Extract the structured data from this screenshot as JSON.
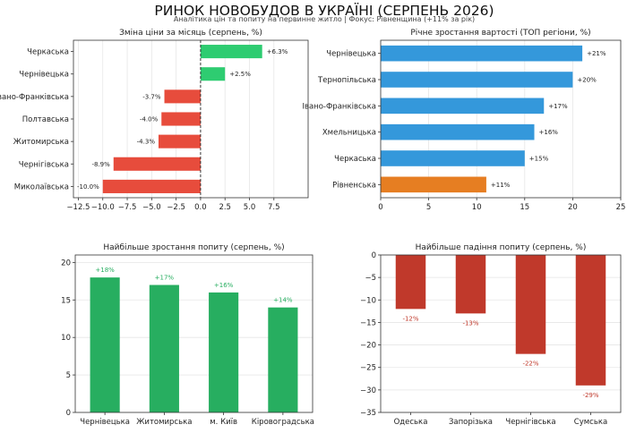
{
  "page": {
    "title": "РИНОК НОВОБУДОВ В УКРАЇНІ (СЕРПЕНЬ 2026)",
    "subtitle": "Аналітика цін та попиту на первинне житло | Фокус: Рівненщина (+11% за рік)"
  },
  "colors": {
    "positive": "#2ecc71",
    "negative": "#e74c3c",
    "blue": "#3498db",
    "highlight": "#e67e22",
    "demand_up": "#27ae60",
    "demand_down": "#c0392b"
  },
  "chart_data": [
    {
      "id": "price_change",
      "type": "bar",
      "orientation": "horizontal",
      "title": "Зміна ціни за місяць (серпень, %)",
      "categories": [
        "Черкаська",
        "Чернівецька",
        "Івано-Франківська",
        "Полтавська",
        "Житомирська",
        "Чернігівська",
        "Миколаївська"
      ],
      "values": [
        6.3,
        2.5,
        -3.7,
        -4.0,
        -4.3,
        -8.9,
        -10.0
      ],
      "labels": [
        "+6.3%",
        "+2.5%",
        "-3.7%",
        "-4.0%",
        "-4.3%",
        "-8.9%",
        "-10.0%"
      ],
      "xlim": [
        -13,
        11
      ],
      "xticks": [
        -12.5,
        -10.0,
        -7.5,
        -5.0,
        -2.5,
        0.0,
        2.5,
        5.0,
        7.5
      ],
      "xtick_labels": [
        "−12.5",
        "−10.0",
        "−7.5",
        "−5.0",
        "−2.5",
        "0.0",
        "2.5",
        "5.0",
        "7.5"
      ],
      "zero_line": "dashed",
      "grid": "x"
    },
    {
      "id": "annual_growth",
      "type": "bar",
      "orientation": "horizontal",
      "title": "Річне зростання вартості (ТОП регіони, %)",
      "categories": [
        "Чернівецька",
        "Тернопільська",
        "Івано-Франківська",
        "Хмельницька",
        "Черкаська",
        "Рівненська"
      ],
      "values": [
        21,
        20,
        17,
        16,
        15,
        11
      ],
      "labels": [
        "+21%",
        "+20%",
        "+17%",
        "+16%",
        "+15%",
        "+11%"
      ],
      "highlight_index": 5,
      "xlim": [
        0,
        25
      ],
      "xticks": [
        0,
        5,
        10,
        15,
        20,
        25
      ],
      "xtick_labels": [
        "0",
        "5",
        "10",
        "15",
        "20",
        "25"
      ],
      "grid": "x"
    },
    {
      "id": "demand_growth",
      "type": "bar",
      "orientation": "vertical",
      "title": "Найбільше зростання попиту (серпень, %)",
      "categories": [
        "Чернівецька",
        "Житомирська",
        "м. Київ",
        "Кіровоградська"
      ],
      "values": [
        18,
        17,
        16,
        14
      ],
      "labels": [
        "+18%",
        "+17%",
        "+16%",
        "+14%"
      ],
      "ylim": [
        0,
        21
      ],
      "yticks": [
        0,
        5,
        10,
        15,
        20
      ],
      "ytick_labels": [
        "0",
        "5",
        "10",
        "15",
        "20"
      ],
      "grid": "y"
    },
    {
      "id": "demand_drop",
      "type": "bar",
      "orientation": "vertical",
      "title": "Найбільше падіння попиту (серпень, %)",
      "categories": [
        "Одеська",
        "Запорізька",
        "Чернігівська",
        "Сумська"
      ],
      "values": [
        -12,
        -13,
        -22,
        -29
      ],
      "labels": [
        "-12%",
        "-13%",
        "-22%",
        "-29%"
      ],
      "ylim": [
        -35,
        0
      ],
      "yticks": [
        0,
        -5,
        -10,
        -15,
        -20,
        -25,
        -30,
        -35
      ],
      "ytick_labels": [
        "0",
        "−5",
        "−10",
        "−15",
        "−20",
        "−25",
        "−30",
        "−35"
      ],
      "grid": "y"
    }
  ]
}
